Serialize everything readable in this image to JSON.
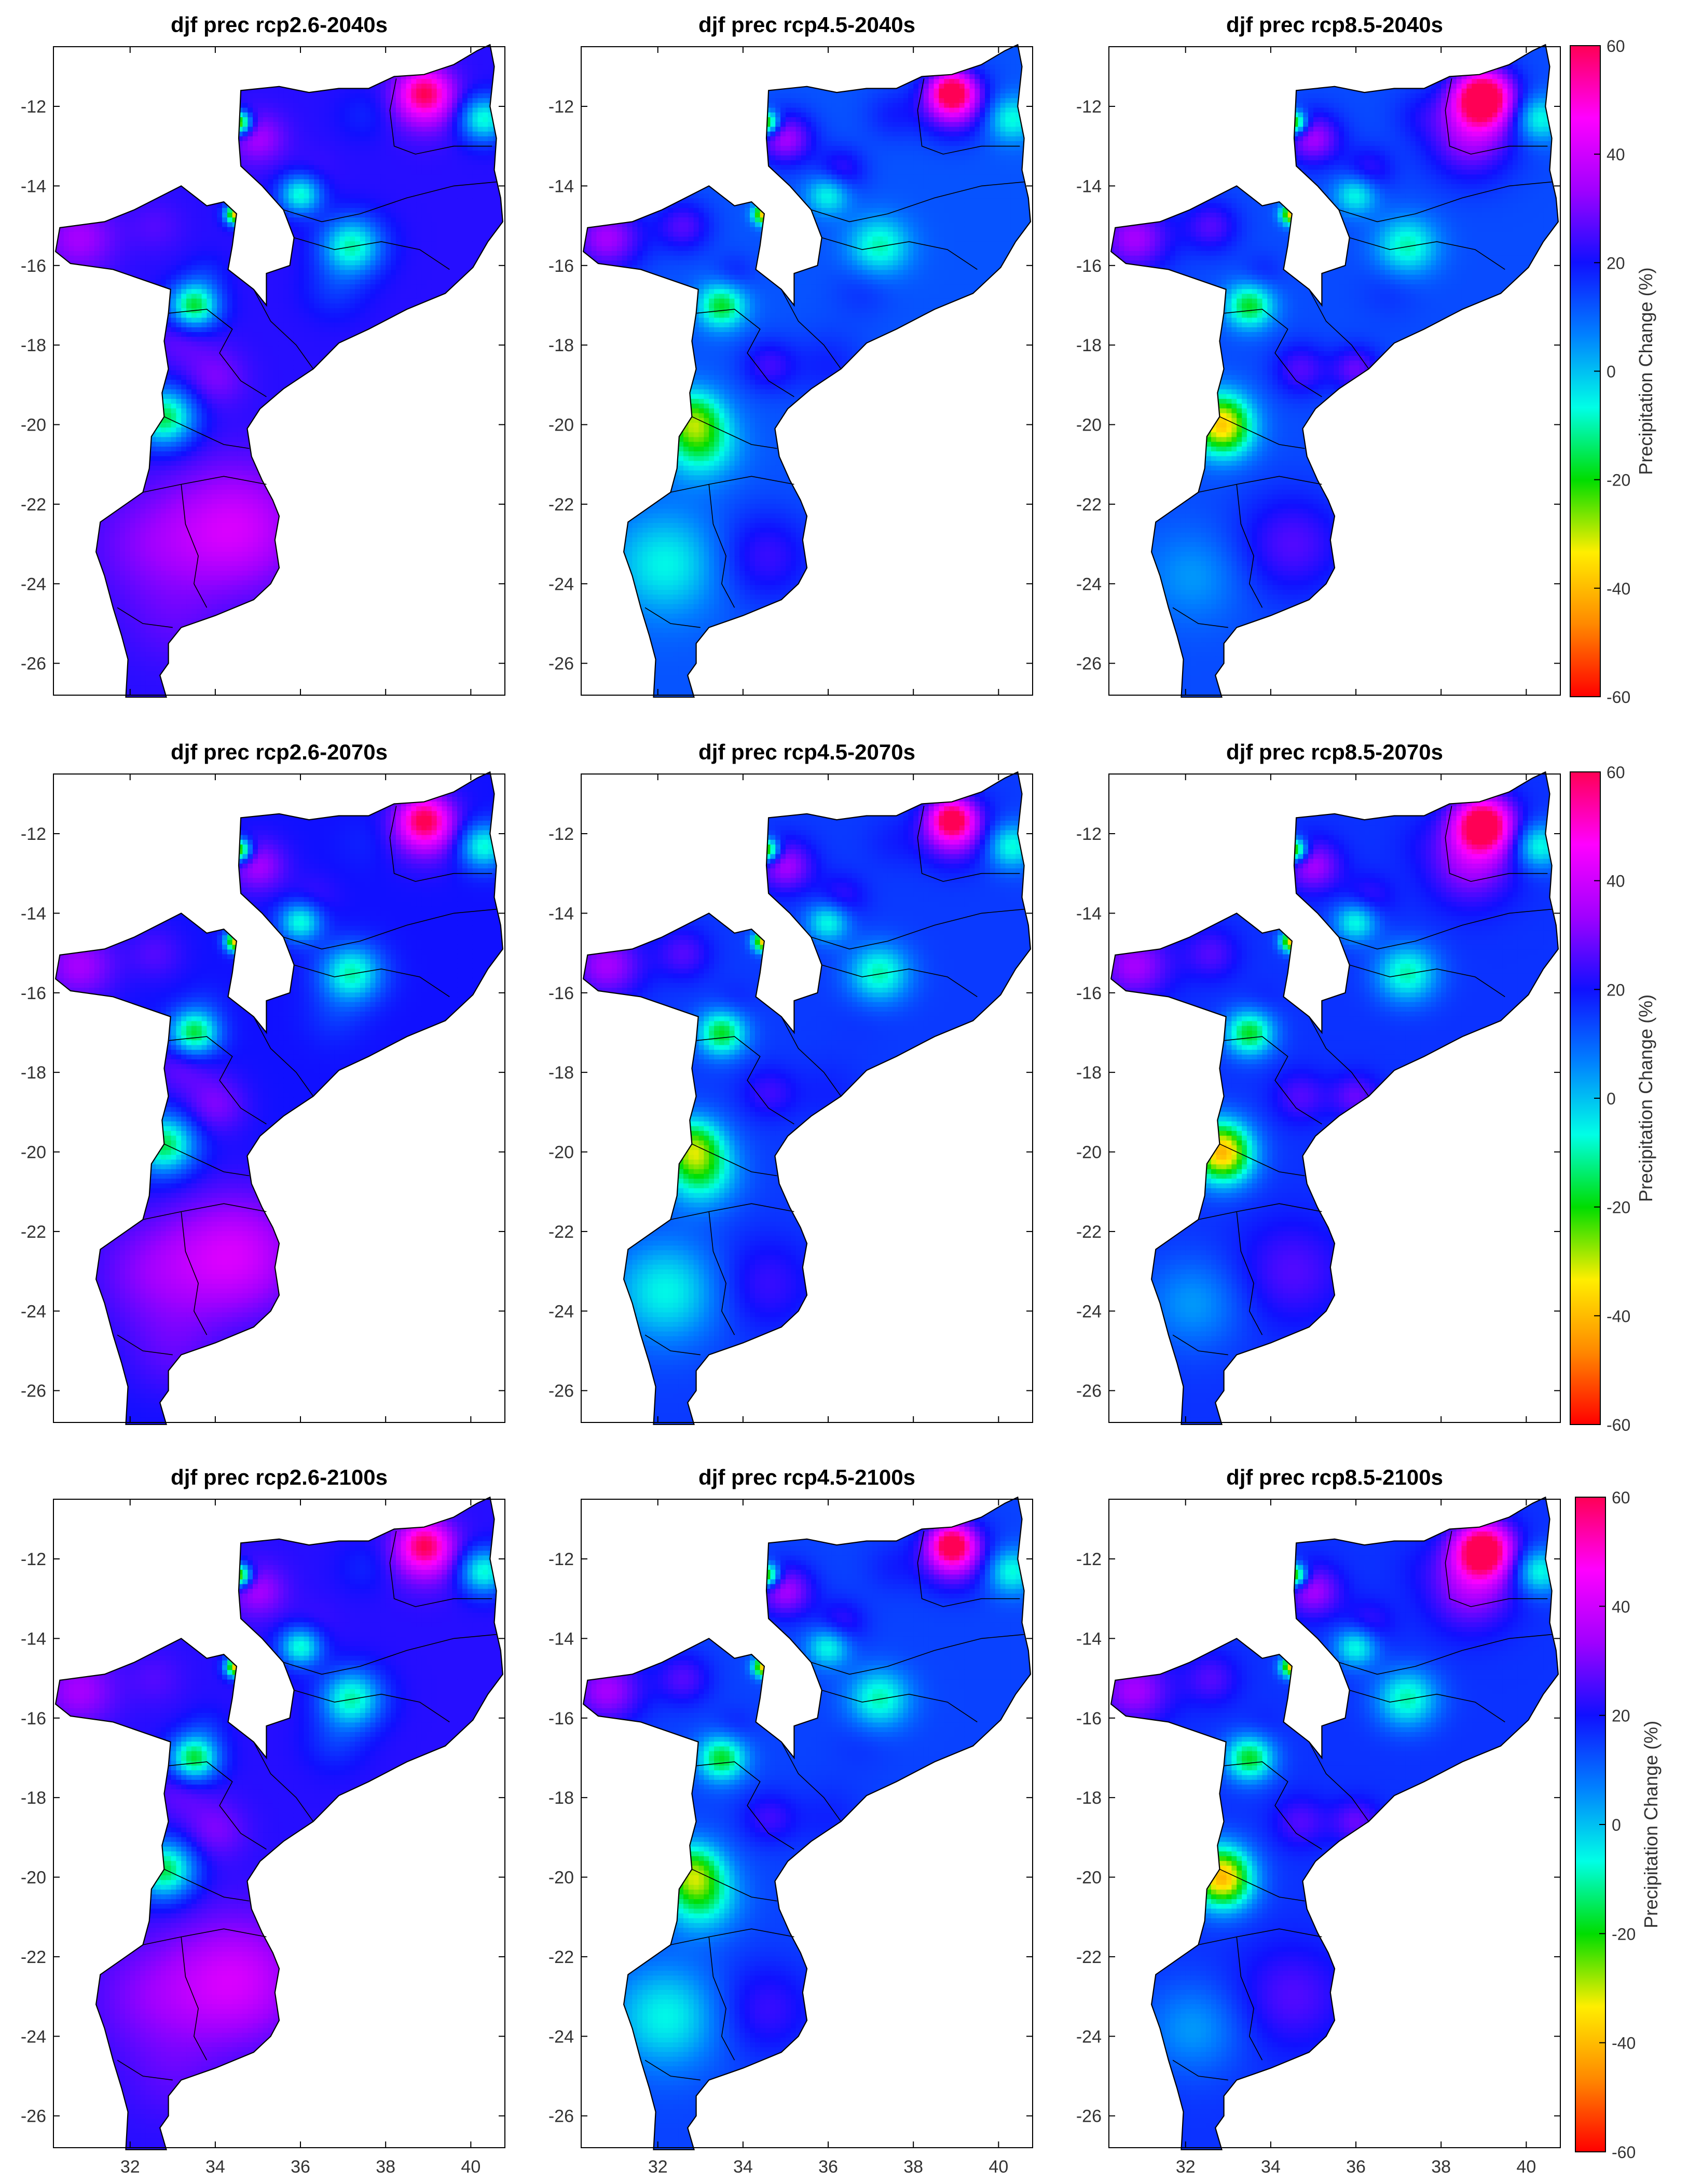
{
  "figure": {
    "variable": "djf prec",
    "colorbar_label": "Precipitation Change (%)",
    "colorbar_ticks": [
      "60",
      "40",
      "20",
      "0",
      "-20",
      "-40",
      "-60"
    ],
    "y_ticks": [
      "-12",
      "-14",
      "-16",
      "-18",
      "-20",
      "-22",
      "-24",
      "-26"
    ],
    "x_ticks": [
      "32",
      "34",
      "36",
      "38",
      "40"
    ]
  },
  "colors": {
    "colormap": [
      "#ff0000",
      "#ff8800",
      "#ffee00",
      "#00dd00",
      "#00ffe6",
      "#0080ff",
      "#1010ff",
      "#a000ff",
      "#ff00ff",
      "#ff0055"
    ],
    "border": "#000000",
    "axes": "#000000"
  },
  "chart_data": [
    {
      "type": "heatmap",
      "title": "djf prec rcp2.6-2040s",
      "scenario": "rcp2.6",
      "period": "2040s",
      "ylim": [
        -26.8,
        -10.5
      ],
      "xlim": [
        30.2,
        40.8
      ],
      "clim": [
        -60,
        60
      ],
      "grid": false,
      "mean_change": 22
    },
    {
      "type": "heatmap",
      "title": "djf prec rcp4.5-2040s",
      "scenario": "rcp4.5",
      "period": "2040s",
      "ylim": [
        -26.8,
        -10.5
      ],
      "xlim": [
        30.2,
        40.8
      ],
      "clim": [
        -60,
        60
      ],
      "grid": false,
      "mean_change": 12
    },
    {
      "type": "heatmap",
      "title": "djf prec rcp8.5-2040s",
      "scenario": "rcp8.5",
      "period": "2040s",
      "ylim": [
        -26.8,
        -10.5
      ],
      "xlim": [
        30.2,
        40.8
      ],
      "clim": [
        -60,
        60
      ],
      "grid": false,
      "mean_change": 13
    },
    {
      "type": "heatmap",
      "title": "djf prec rcp2.6-2070s",
      "scenario": "rcp2.6",
      "period": "2070s",
      "ylim": [
        -26.8,
        -10.5
      ],
      "xlim": [
        30.2,
        40.8
      ],
      "clim": [
        -60,
        60
      ],
      "grid": false,
      "mean_change": 20
    },
    {
      "type": "heatmap",
      "title": "djf prec rcp4.5-2070s",
      "scenario": "rcp4.5",
      "period": "2070s",
      "ylim": [
        -26.8,
        -10.5
      ],
      "xlim": [
        30.2,
        40.8
      ],
      "clim": [
        -60,
        60
      ],
      "grid": false,
      "mean_change": 15
    },
    {
      "type": "heatmap",
      "title": "djf prec rcp8.5-2070s",
      "scenario": "rcp8.5",
      "period": "2070s",
      "ylim": [
        -26.8,
        -10.5
      ],
      "xlim": [
        30.2,
        40.8
      ],
      "clim": [
        -60,
        60
      ],
      "grid": false,
      "mean_change": 16
    },
    {
      "type": "heatmap",
      "title": "djf prec rcp2.6-2100s",
      "scenario": "rcp2.6",
      "period": "2100s",
      "ylim": [
        -26.8,
        -10.5
      ],
      "xlim": [
        30.2,
        40.8
      ],
      "clim": [
        -60,
        60
      ],
      "grid": false,
      "mean_change": 22
    },
    {
      "type": "heatmap",
      "title": "djf prec rcp4.5-2100s",
      "scenario": "rcp4.5",
      "period": "2100s",
      "ylim": [
        -26.8,
        -10.5
      ],
      "xlim": [
        30.2,
        40.8
      ],
      "clim": [
        -60,
        60
      ],
      "grid": false,
      "mean_change": 14
    },
    {
      "type": "heatmap",
      "title": "djf prec rcp8.5-2100s",
      "scenario": "rcp8.5",
      "period": "2100s",
      "ylim": [
        -26.8,
        -10.5
      ],
      "xlim": [
        30.2,
        40.8
      ],
      "clim": [
        -60,
        60
      ],
      "grid": false,
      "mean_change": 16
    }
  ]
}
